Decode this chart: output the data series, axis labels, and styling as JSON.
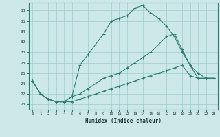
{
  "xlabel": "Humidex (Indice chaleur)",
  "background_color": "#cce8e8",
  "grid_color": "#a0cccc",
  "line_color": "#2e7d6e",
  "xlim": [
    -0.5,
    23.5
  ],
  "ylim": [
    19.0,
    39.5
  ],
  "yticks": [
    20,
    22,
    24,
    26,
    28,
    30,
    32,
    34,
    36,
    38
  ],
  "xticks": [
    0,
    1,
    2,
    3,
    4,
    5,
    6,
    7,
    8,
    9,
    10,
    11,
    12,
    13,
    14,
    15,
    16,
    17,
    18,
    19,
    20,
    21,
    22,
    23
  ],
  "line1_x": [
    0,
    1,
    2,
    3,
    4,
    5,
    6,
    7,
    8,
    9,
    10,
    11,
    12,
    13,
    14,
    15,
    16,
    17,
    18,
    19,
    20,
    21,
    22,
    23
  ],
  "line1_y": [
    24.5,
    22,
    21,
    20.5,
    20.5,
    21.5,
    27.5,
    29.5,
    31.5,
    33.5,
    36,
    36.5,
    37,
    38.5,
    39.0,
    37.5,
    36.5,
    35.0,
    33.0,
    30.0,
    27.5,
    25.0,
    25.0,
    25.0
  ],
  "line2_x": [
    0,
    1,
    2,
    3,
    4,
    5,
    6,
    7,
    8,
    9,
    10,
    11,
    12,
    13,
    14,
    15,
    16,
    17,
    18,
    19,
    20,
    21,
    22,
    23
  ],
  "line2_y": [
    24.5,
    22,
    21,
    20.5,
    20.5,
    21.5,
    22,
    23,
    24,
    25,
    25.5,
    26,
    27,
    28,
    29,
    30,
    31.5,
    33,
    33.5,
    30.5,
    27.5,
    26,
    25,
    25
  ],
  "line3_x": [
    0,
    1,
    2,
    3,
    4,
    5,
    6,
    7,
    8,
    9,
    10,
    11,
    12,
    13,
    14,
    15,
    16,
    17,
    18,
    19,
    20,
    21,
    22,
    23
  ],
  "line3_y": [
    24.5,
    22,
    21,
    20.5,
    20.5,
    20.5,
    21,
    21.5,
    22,
    22.5,
    23,
    23.5,
    24,
    24.5,
    25,
    25.5,
    26,
    26.5,
    27,
    27.5,
    25.5,
    25,
    25,
    25
  ]
}
